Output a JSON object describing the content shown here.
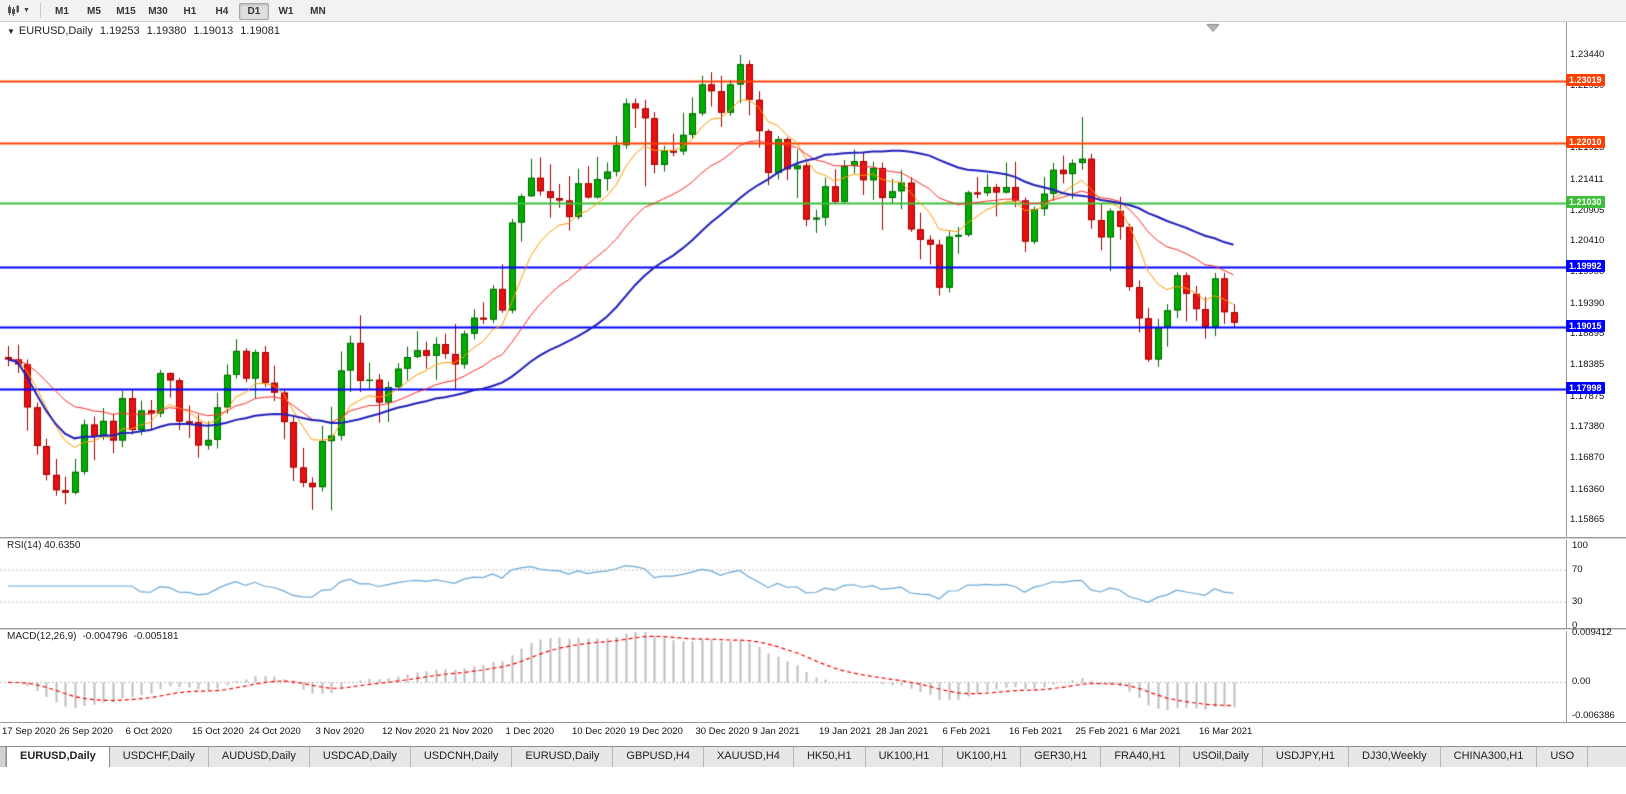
{
  "toolbar": {
    "timeframes": [
      "M1",
      "M5",
      "M15",
      "M30",
      "H1",
      "H4",
      "D1",
      "W1",
      "MN"
    ],
    "active_timeframe": "D1"
  },
  "chart": {
    "symbol_label": "EURUSD,Daily",
    "open": "1.19253",
    "high": "1.19380",
    "low": "1.19013",
    "close": "1.19081",
    "y_axis": [
      {
        "text": "1.23440",
        "price": 1.2344
      },
      {
        "text": "1.22930",
        "price": 1.2293
      },
      {
        "text": "1.21925",
        "price": 1.21925
      },
      {
        "text": "1.21411",
        "price": 1.21411
      },
      {
        "text": "1.20905",
        "price": 1.20905
      },
      {
        "text": "1.20410",
        "price": 1.2041
      },
      {
        "text": "1.19900",
        "price": 1.199
      },
      {
        "text": "1.19390",
        "price": 1.1939
      },
      {
        "text": "1.18895",
        "price": 1.18895
      },
      {
        "text": "1.18385",
        "price": 1.18385
      },
      {
        "text": "1.17875",
        "price": 1.17875
      },
      {
        "text": "1.17380",
        "price": 1.1738
      },
      {
        "text": "1.16870",
        "price": 1.1687
      },
      {
        "text": "1.16360",
        "price": 1.1636
      },
      {
        "text": "1.15865",
        "price": 1.15865
      }
    ],
    "h_lines": [
      {
        "price": 1.23019,
        "label": "1.23019",
        "color": "#ff4000",
        "width": 2
      },
      {
        "price": 1.2201,
        "label": "1.22010",
        "color": "#ff4000",
        "width": 2
      },
      {
        "price": 1.2103,
        "label": "1.21030",
        "color": "#3cc03c",
        "width": 2
      },
      {
        "price": 1.19992,
        "label": "1.19992",
        "color": "#0000ff",
        "width": 2
      },
      {
        "price": 1.19015,
        "label": "1.19015",
        "color": "#0000ff",
        "width": 2
      },
      {
        "price": 1.17998,
        "label": "1.17998",
        "color": "#0000ff",
        "width": 2
      }
    ],
    "up_color": "#00ad00",
    "up_border": "#006600",
    "down_color": "#e81010",
    "down_border": "#9e0000"
  },
  "chart_data": {
    "type": "candlestick",
    "symbol": "EURUSD",
    "timeframe": "Daily",
    "price_range": {
      "min": 1.1562,
      "max": 1.2369
    },
    "x_labels": [
      {
        "text": "17 Sep 2020",
        "index": 0
      },
      {
        "text": "26 Sep 2020",
        "index": 6
      },
      {
        "text": "6 Oct 2020",
        "index": 13
      },
      {
        "text": "15 Oct 2020",
        "index": 20
      },
      {
        "text": "24 Oct 2020",
        "index": 26
      },
      {
        "text": "3 Nov 2020",
        "index": 33
      },
      {
        "text": "12 Nov 2020",
        "index": 40
      },
      {
        "text": "21 Nov 2020",
        "index": 46
      },
      {
        "text": "1 Dec 2020",
        "index": 53
      },
      {
        "text": "10 Dec 2020",
        "index": 60
      },
      {
        "text": "19 Dec 2020",
        "index": 66
      },
      {
        "text": "30 Dec 2020",
        "index": 73
      },
      {
        "text": "9 Jan 2021",
        "index": 79
      },
      {
        "text": "19 Jan 2021",
        "index": 86
      },
      {
        "text": "28 Jan 2021",
        "index": 92
      },
      {
        "text": "6 Feb 2021",
        "index": 99
      },
      {
        "text": "16 Feb 2021",
        "index": 106
      },
      {
        "text": "25 Feb 2021",
        "index": 113
      },
      {
        "text": "6 Mar 2021",
        "index": 119
      },
      {
        "text": "16 Mar 2021",
        "index": 126
      }
    ],
    "candles_ohlc": [
      [
        1.1852,
        1.187,
        1.1837,
        1.1848
      ],
      [
        1.1848,
        1.1872,
        1.1826,
        1.184
      ],
      [
        1.184,
        1.1848,
        1.1732,
        1.177
      ],
      [
        1.177,
        1.1778,
        1.1693,
        1.1707
      ],
      [
        1.1707,
        1.1719,
        1.1651,
        1.166
      ],
      [
        1.166,
        1.1686,
        1.1626,
        1.1635
      ],
      [
        1.1635,
        1.1657,
        1.1612,
        1.1631
      ],
      [
        1.1631,
        1.1686,
        1.1628,
        1.1665
      ],
      [
        1.1665,
        1.175,
        1.166,
        1.1742
      ],
      [
        1.1742,
        1.1755,
        1.1684,
        1.1722
      ],
      [
        1.1722,
        1.1769,
        1.1717,
        1.1748
      ],
      [
        1.1748,
        1.176,
        1.1695,
        1.1716
      ],
      [
        1.1716,
        1.1797,
        1.1705,
        1.1785
      ],
      [
        1.1785,
        1.1798,
        1.1726,
        1.1733
      ],
      [
        1.1733,
        1.1781,
        1.1725,
        1.1765
      ],
      [
        1.1765,
        1.1782,
        1.1733,
        1.176
      ],
      [
        1.176,
        1.1831,
        1.1754,
        1.1826
      ],
      [
        1.1826,
        1.1827,
        1.1786,
        1.1814
      ],
      [
        1.1814,
        1.1818,
        1.1733,
        1.1747
      ],
      [
        1.1747,
        1.1773,
        1.172,
        1.1746
      ],
      [
        1.1746,
        1.1758,
        1.1688,
        1.1708
      ],
      [
        1.1708,
        1.1747,
        1.1701,
        1.1717
      ],
      [
        1.1717,
        1.1794,
        1.1703,
        1.177
      ],
      [
        1.177,
        1.184,
        1.176,
        1.1823
      ],
      [
        1.1823,
        1.1881,
        1.1817,
        1.1862
      ],
      [
        1.1862,
        1.1866,
        1.1811,
        1.1817
      ],
      [
        1.1817,
        1.1864,
        1.1785,
        1.186
      ],
      [
        1.186,
        1.187,
        1.1803,
        1.181
      ],
      [
        1.181,
        1.1838,
        1.178,
        1.1794
      ],
      [
        1.1794,
        1.18,
        1.1718,
        1.1746
      ],
      [
        1.1746,
        1.1758,
        1.165,
        1.1672
      ],
      [
        1.1672,
        1.1704,
        1.164,
        1.1647
      ],
      [
        1.1647,
        1.1656,
        1.1603,
        1.164
      ],
      [
        1.164,
        1.174,
        1.1633,
        1.1715
      ],
      [
        1.1715,
        1.1771,
        1.1602,
        1.1724
      ],
      [
        1.1724,
        1.1861,
        1.1716,
        1.183
      ],
      [
        1.183,
        1.1887,
        1.1795,
        1.1875
      ],
      [
        1.1875,
        1.192,
        1.1795,
        1.1813
      ],
      [
        1.1813,
        1.1843,
        1.18,
        1.1815
      ],
      [
        1.1815,
        1.1824,
        1.1745,
        1.1778
      ],
      [
        1.1778,
        1.1812,
        1.1746,
        1.1803
      ],
      [
        1.1803,
        1.1842,
        1.1799,
        1.1833
      ],
      [
        1.1833,
        1.1869,
        1.1814,
        1.1852
      ],
      [
        1.1852,
        1.1894,
        1.185,
        1.1863
      ],
      [
        1.1863,
        1.1877,
        1.1833,
        1.1854
      ],
      [
        1.1854,
        1.1884,
        1.1815,
        1.1873
      ],
      [
        1.1873,
        1.189,
        1.1849,
        1.1857
      ],
      [
        1.1857,
        1.1906,
        1.18,
        1.184
      ],
      [
        1.184,
        1.1895,
        1.1833,
        1.189
      ],
      [
        1.189,
        1.193,
        1.1881,
        1.1916
      ],
      [
        1.1916,
        1.1941,
        1.1906,
        1.1913
      ],
      [
        1.1913,
        1.1969,
        1.1907,
        1.1963
      ],
      [
        1.1963,
        1.2003,
        1.1924,
        1.1928
      ],
      [
        1.1928,
        1.2077,
        1.1923,
        1.2071
      ],
      [
        1.2071,
        1.2118,
        1.204,
        1.2114
      ],
      [
        1.2114,
        1.2175,
        1.2113,
        1.2144
      ],
      [
        1.2144,
        1.2177,
        1.2115,
        1.2122
      ],
      [
        1.2122,
        1.2166,
        1.2079,
        1.2111
      ],
      [
        1.2111,
        1.2134,
        1.2095,
        1.2107
      ],
      [
        1.2107,
        1.2147,
        1.2058,
        1.208
      ],
      [
        1.208,
        1.2159,
        1.2076,
        1.2135
      ],
      [
        1.2135,
        1.2163,
        1.211,
        1.2112
      ],
      [
        1.2112,
        1.2178,
        1.211,
        1.2142
      ],
      [
        1.2142,
        1.2169,
        1.2123,
        1.2154
      ],
      [
        1.2154,
        1.2212,
        1.2146,
        1.2197
      ],
      [
        1.2197,
        1.2273,
        1.2191,
        1.2265
      ],
      [
        1.2265,
        1.2273,
        1.2225,
        1.2257
      ],
      [
        1.2257,
        1.2271,
        1.213,
        1.2241
      ],
      [
        1.2241,
        1.2251,
        1.2151,
        1.2165
      ],
      [
        1.2165,
        1.2196,
        1.2154,
        1.2188
      ],
      [
        1.2188,
        1.2216,
        1.2179,
        1.2187
      ],
      [
        1.2187,
        1.225,
        1.2181,
        1.2214
      ],
      [
        1.2214,
        1.2275,
        1.2208,
        1.2249
      ],
      [
        1.2249,
        1.231,
        1.2245,
        1.2296
      ],
      [
        1.2296,
        1.2316,
        1.226,
        1.2285
      ],
      [
        1.2285,
        1.231,
        1.2227,
        1.225
      ],
      [
        1.225,
        1.2303,
        1.2245,
        1.2296
      ],
      [
        1.2296,
        1.2344,
        1.2266,
        1.2329
      ],
      [
        1.2329,
        1.2335,
        1.2246,
        1.2271
      ],
      [
        1.2271,
        1.2285,
        1.2193,
        1.222
      ],
      [
        1.222,
        1.2223,
        1.2132,
        1.2152
      ],
      [
        1.2152,
        1.2212,
        1.2141,
        1.2207
      ],
      [
        1.2207,
        1.221,
        1.214,
        1.2158
      ],
      [
        1.2158,
        1.219,
        1.2111,
        1.2164
      ],
      [
        1.2164,
        1.2169,
        1.2065,
        1.2076
      ],
      [
        1.2076,
        1.2092,
        1.2054,
        1.2079
      ],
      [
        1.2079,
        1.2144,
        1.2066,
        1.213
      ],
      [
        1.213,
        1.2158,
        1.2101,
        1.2105
      ],
      [
        1.2105,
        1.2173,
        1.2102,
        1.2163
      ],
      [
        1.2163,
        1.219,
        1.2151,
        1.2171
      ],
      [
        1.2171,
        1.2185,
        1.2116,
        1.214
      ],
      [
        1.214,
        1.217,
        1.2108,
        1.216
      ],
      [
        1.216,
        1.2169,
        1.2059,
        1.2111
      ],
      [
        1.2111,
        1.2142,
        1.2101,
        1.2122
      ],
      [
        1.2122,
        1.2157,
        1.2093,
        1.2136
      ],
      [
        1.2136,
        1.2145,
        1.2056,
        1.206
      ],
      [
        1.206,
        1.2087,
        1.2011,
        1.2043
      ],
      [
        1.2043,
        1.205,
        1.2003,
        1.2035
      ],
      [
        1.2035,
        1.2043,
        1.1952,
        1.1965
      ],
      [
        1.1965,
        1.2058,
        1.1957,
        1.2048
      ],
      [
        1.2048,
        1.2064,
        1.202,
        1.2051
      ],
      [
        1.2051,
        1.2123,
        1.2048,
        1.212
      ],
      [
        1.212,
        1.2145,
        1.211,
        1.2119
      ],
      [
        1.2119,
        1.215,
        1.2114,
        1.2129
      ],
      [
        1.2129,
        1.2134,
        1.2081,
        1.212
      ],
      [
        1.212,
        1.2169,
        1.2118,
        1.2129
      ],
      [
        1.2129,
        1.217,
        1.2096,
        1.2107
      ],
      [
        1.2107,
        1.2112,
        1.2023,
        1.204
      ],
      [
        1.204,
        1.2097,
        1.2036,
        1.2093
      ],
      [
        1.2093,
        1.2145,
        1.2082,
        1.2118
      ],
      [
        1.2118,
        1.2168,
        1.2106,
        1.2157
      ],
      [
        1.2157,
        1.218,
        1.2135,
        1.215
      ],
      [
        1.215,
        1.2174,
        1.2109,
        1.2168
      ],
      [
        1.2168,
        1.2243,
        1.2157,
        1.2175
      ],
      [
        1.2175,
        1.2183,
        1.2061,
        1.2075
      ],
      [
        1.2075,
        1.2101,
        1.2026,
        1.2047
      ],
      [
        1.2047,
        1.2094,
        1.1992,
        1.209
      ],
      [
        1.209,
        1.2113,
        1.2043,
        1.2064
      ],
      [
        1.2064,
        1.2069,
        1.196,
        1.1966
      ],
      [
        1.1966,
        1.1977,
        1.1892,
        1.1915
      ],
      [
        1.1915,
        1.1932,
        1.1844,
        1.1848
      ],
      [
        1.1848,
        1.1914,
        1.1836,
        1.19
      ],
      [
        1.19,
        1.1938,
        1.1869,
        1.1928
      ],
      [
        1.1928,
        1.199,
        1.1915,
        1.1985
      ],
      [
        1.1985,
        1.199,
        1.191,
        1.1955
      ],
      [
        1.1955,
        1.1968,
        1.1911,
        1.193
      ],
      [
        1.193,
        1.195,
        1.1882,
        1.19
      ],
      [
        1.19,
        1.1989,
        1.1886,
        1.198
      ],
      [
        1.198,
        1.1989,
        1.1906,
        1.1925
      ],
      [
        1.1925,
        1.1938,
        1.1901,
        1.1908
      ]
    ],
    "moving_averages": [
      {
        "name": "fast",
        "method": "ema",
        "period": 8,
        "color": "#ff9900",
        "width": 1
      },
      {
        "name": "medium",
        "method": "ema",
        "period": 21,
        "color": "#ff2a2a",
        "width": 1
      },
      {
        "name": "slow",
        "method": "sma",
        "period": 34,
        "color": "#2020bb",
        "width": 2
      }
    ]
  },
  "rsi": {
    "label": "RSI(14)",
    "value": "40.6350",
    "period": 14,
    "axis": [
      {
        "text": "100",
        "value": 100
      },
      {
        "text": "70",
        "value": 70
      },
      {
        "text": "30",
        "value": 30
      },
      {
        "text": "0",
        "value": 0
      }
    ],
    "levels": [
      70,
      30
    ],
    "color": "#69a8d8"
  },
  "macd": {
    "label": "MACD(12,26,9)",
    "value_main": "-0.004796",
    "value_signal": "-0.005181",
    "fast": 12,
    "slow": 26,
    "signal": 9,
    "axis": [
      {
        "text": "0.009412",
        "value": 0.009412
      },
      {
        "text": "0.00",
        "value": 0
      },
      {
        "text": "-0.006386",
        "value": -0.006386
      }
    ],
    "histogram_color": "#bdbdbd",
    "signal_color": "#ff0000"
  },
  "tabs": {
    "items": [
      {
        "label": "EURUSD,Daily",
        "active": true
      },
      {
        "label": "USDCHF,Daily",
        "active": false
      },
      {
        "label": "AUDUSD,Daily",
        "active": false
      },
      {
        "label": "USDCAD,Daily",
        "active": false
      },
      {
        "label": "USDCNH,Daily",
        "active": false
      },
      {
        "label": "EURUSD,Daily",
        "active": false
      },
      {
        "label": "GBPUSD,H4",
        "active": false
      },
      {
        "label": "XAUUSD,H4",
        "active": false
      },
      {
        "label": "HK50,H1",
        "active": false
      },
      {
        "label": "UK100,H1",
        "active": false
      },
      {
        "label": "UK100,H1",
        "active": false
      },
      {
        "label": "GER30,H1",
        "active": false
      },
      {
        "label": "FRA40,H1",
        "active": false
      },
      {
        "label": "USOil,Daily",
        "active": false
      },
      {
        "label": "USDJPY,H1",
        "active": false
      },
      {
        "label": "DJ30,Weekly",
        "active": false
      },
      {
        "label": "CHINA300,H1",
        "active": false
      },
      {
        "label": "USO",
        "active": false
      }
    ]
  }
}
